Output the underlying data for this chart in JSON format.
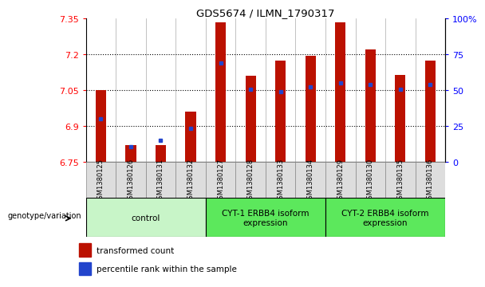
{
  "title": "GDS5674 / ILMN_1790317",
  "samples": [
    "GSM1380125",
    "GSM1380126",
    "GSM1380131",
    "GSM1380132",
    "GSM1380127",
    "GSM1380128",
    "GSM1380133",
    "GSM1380134",
    "GSM1380129",
    "GSM1380130",
    "GSM1380135",
    "GSM1380136"
  ],
  "bar_values": [
    7.05,
    6.82,
    6.82,
    6.96,
    7.335,
    7.11,
    7.175,
    7.195,
    7.335,
    7.22,
    7.115,
    7.175
  ],
  "percentile_values": [
    6.93,
    6.815,
    6.84,
    6.89,
    7.165,
    7.055,
    7.045,
    7.065,
    7.08,
    7.075,
    7.055,
    7.075
  ],
  "ymin": 6.75,
  "ymax": 7.35,
  "yticks_left": [
    6.75,
    6.9,
    7.05,
    7.2,
    7.35
  ],
  "yticks_right": [
    0,
    25,
    50,
    75,
    100
  ],
  "groups": [
    {
      "label": "control",
      "start": 0,
      "end": 3,
      "color": "#c8f5c8"
    },
    {
      "label": "CYT-1 ERBB4 isoform\nexpression",
      "start": 4,
      "end": 7,
      "color": "#5ce85c"
    },
    {
      "label": "CYT-2 ERBB4 isoform\nexpression",
      "start": 8,
      "end": 11,
      "color": "#5ce85c"
    }
  ],
  "bar_color": "#bb1100",
  "percentile_color": "#2244cc",
  "bar_bottom": 6.75,
  "bar_width": 0.35,
  "legend_items": [
    {
      "label": "transformed count",
      "color": "#bb1100"
    },
    {
      "label": "percentile rank within the sample",
      "color": "#2244cc"
    }
  ],
  "genotype_label": "genotype/variation",
  "sample_box_color": "#dddddd",
  "grid_yticks": [
    6.9,
    7.05,
    7.2
  ]
}
